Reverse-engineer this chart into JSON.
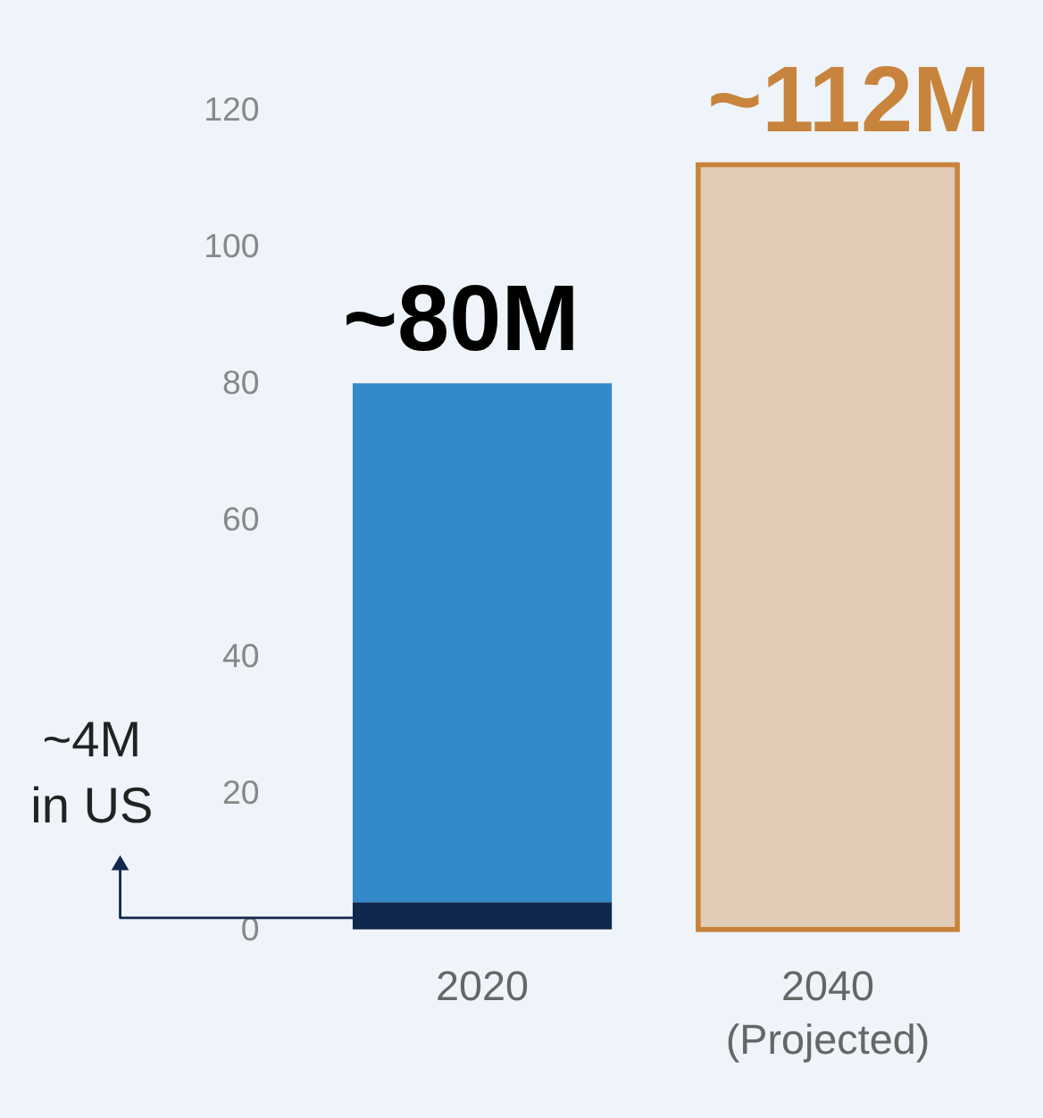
{
  "chart_data": {
    "type": "bar",
    "stacked": true,
    "categories": [
      "2020",
      "2040\n(Projected)"
    ],
    "series": [
      {
        "color": "#10284e",
        "values": [
          4,
          null
        ]
      },
      {
        "color": "#3389c9",
        "values": [
          76,
          null
        ]
      },
      {
        "color": "#c8843c",
        "values": [
          null,
          112
        ]
      }
    ],
    "totals": [
      "~80M",
      "~112M"
    ],
    "annotations": [
      "~4M\nin US"
    ],
    "ylim": [
      0,
      120
    ],
    "yticks": [
      0,
      20,
      40,
      60,
      80,
      100,
      120
    ],
    "grid": false
  }
}
